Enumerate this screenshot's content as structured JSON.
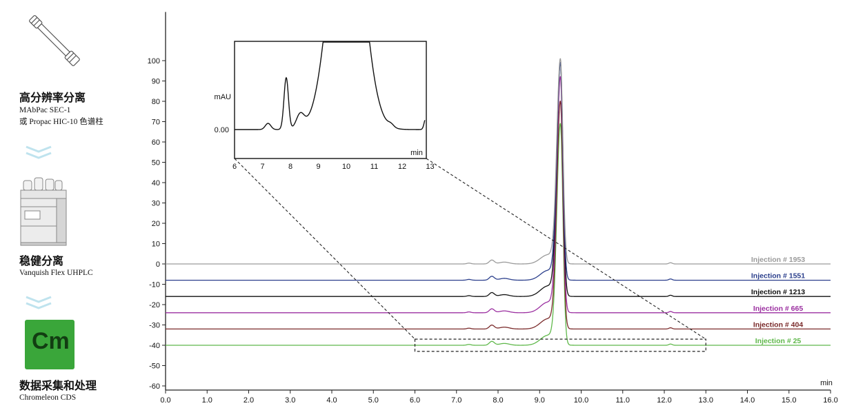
{
  "workflow": {
    "step1": {
      "icon": "hplc-column-icon",
      "title": "高分辨率分离",
      "line1": "MAbPac SEC-1",
      "line2": "或 Propac HIC-10 色谱柱"
    },
    "step2": {
      "icon": "uhplc-instrument-icon",
      "title": "稳健分离",
      "line1": "Vanquish Flex UHPLC"
    },
    "step3": {
      "icon": "chromeleon-logo-icon",
      "title": "数据采集和处理",
      "line1": "Chromeleon CDS",
      "logo_text": "Cm"
    },
    "chevron_color": "#bfe3ee"
  },
  "chart_data": [
    {
      "type": "line",
      "xlabel": "min",
      "ylabel": "",
      "xlim": [
        0,
        16
      ],
      "ylim": [
        -60,
        107
      ],
      "xticks": [
        "0.0",
        "1.0",
        "2.0",
        "3.0",
        "4.0",
        "5.0",
        "6.0",
        "7.0",
        "8.0",
        "9.0",
        "10.0",
        "11.0",
        "12.0",
        "13.0",
        "14.0",
        "15.0",
        "16.0"
      ],
      "yticks": [
        "100",
        "90",
        "80",
        "70",
        "60",
        "50",
        "40",
        "30",
        "20",
        "10",
        "0",
        "-10",
        "-20",
        "-30",
        "-40",
        "-50",
        "-60"
      ],
      "series": [
        {
          "name": "Injection # 1953",
          "color": "#9a9a9a",
          "baseline": 0,
          "peak": 100
        },
        {
          "name": "Injection # 1551",
          "color": "#2b3f8c",
          "baseline": -8,
          "peak": 98
        },
        {
          "name": "Injection # 1213",
          "color": "#111111",
          "baseline": -16,
          "peak": 98
        },
        {
          "name": "Injection # 665",
          "color": "#9b2fa0",
          "baseline": -24,
          "peak": 91
        },
        {
          "name": "Injection # 404",
          "color": "#7a2a2a",
          "baseline": -32,
          "peak": 79
        },
        {
          "name": "Injection # 25",
          "color": "#5fb84a",
          "baseline": -40,
          "peak": 68
        }
      ],
      "peaks": {
        "main_peak_x": 9.5,
        "minor_peak_x": 7.85,
        "tail_peak_x": 12.15
      },
      "zoom_region": {
        "x": [
          6.0,
          13.0
        ],
        "y": [
          -43,
          -37
        ]
      }
    },
    {
      "type": "line",
      "title": "",
      "ylabel": "mAU",
      "xlabel": "min",
      "y_tick": "0.00",
      "xticks": [
        "6",
        "7",
        "8",
        "9",
        "10",
        "11",
        "12",
        "13"
      ],
      "features": {
        "bump_x": 7.2,
        "major_x": 7.85,
        "shoulder_x": 8.35,
        "main_peak_x": 10.0,
        "tail_bump_x": 11.6,
        "end_peak_x": 12.85
      }
    }
  ]
}
